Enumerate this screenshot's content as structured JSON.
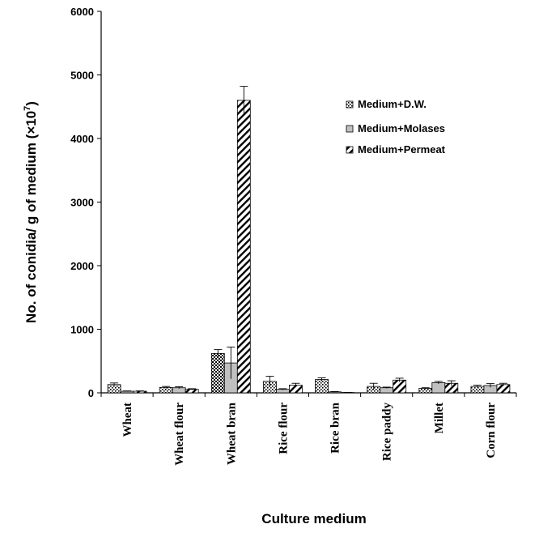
{
  "chart_data": {
    "type": "bar",
    "title": "",
    "xlabel": "Culture medium",
    "ylabel_main": "No. of conidia/ g of medium (×10",
    "ylabel_exp": "7",
    "ylabel_close": ")",
    "ylim": [
      0,
      6000
    ],
    "yticks": [
      "0",
      "1000",
      "2000",
      "3000",
      "4000",
      "5000",
      "6000"
    ],
    "grid": false,
    "legend_position": "top-right",
    "categories": [
      "Wheat",
      "Wheat flour",
      "Wheat bran",
      "Rice flour",
      "Rice bran",
      "Rice paddy",
      "Millet",
      "Corn flour"
    ],
    "series": [
      {
        "name": "Medium+D.W.",
        "pattern": "dots",
        "values": [
          130,
          85,
          620,
          180,
          210,
          100,
          70,
          100
        ],
        "errors": [
          25,
          15,
          60,
          80,
          25,
          50,
          10,
          20
        ]
      },
      {
        "name": "Medium+Molases",
        "pattern": "solid-gray",
        "values": [
          25,
          80,
          470,
          55,
          15,
          80,
          160,
          115
        ],
        "errors": [
          5,
          15,
          250,
          10,
          5,
          10,
          20,
          30
        ]
      },
      {
        "name": "Medium+Permeat",
        "pattern": "diagonal",
        "values": [
          25,
          55,
          4600,
          120,
          5,
          200,
          150,
          130
        ],
        "errors": [
          5,
          10,
          220,
          30,
          2,
          30,
          40,
          20
        ]
      }
    ]
  }
}
